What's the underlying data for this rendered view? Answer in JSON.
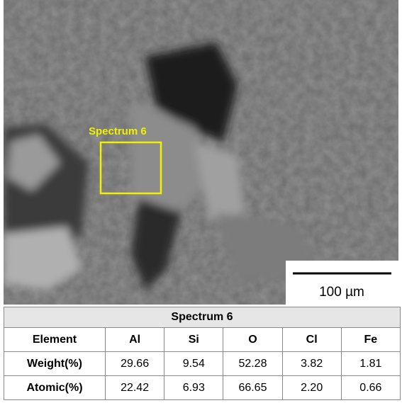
{
  "image": {
    "spectrum_label": "Spectrum 6",
    "scale_bar": "100 µm"
  },
  "table": {
    "title": "Spectrum 6",
    "header": [
      "Element",
      "Al",
      "Si",
      "O",
      "Cl",
      "Fe"
    ],
    "rows": [
      [
        "Weight(%)",
        "29.66",
        "9.54",
        "52.28",
        "3.82",
        "1.81"
      ],
      [
        "Atomic(%)",
        "22.42",
        "6.93",
        "66.65",
        "2.20",
        "0.66"
      ]
    ]
  }
}
